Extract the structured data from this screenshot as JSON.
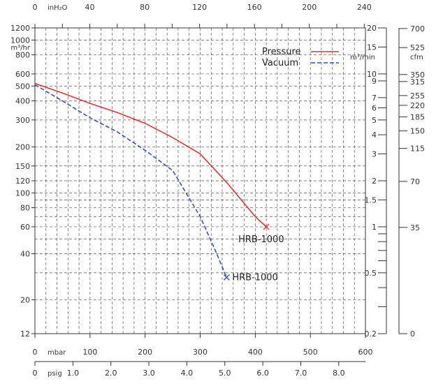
{
  "chart_data": {
    "type": "line",
    "series": [
      {
        "name": "Pressure",
        "color": "#d9343b",
        "dash": "solid",
        "label": "HRB-1000",
        "points": [
          [
            0,
            520
          ],
          [
            50,
            450
          ],
          [
            100,
            385
          ],
          [
            150,
            335
          ],
          [
            200,
            285
          ],
          [
            250,
            230
          ],
          [
            300,
            180
          ],
          [
            350,
            115
          ],
          [
            400,
            70
          ],
          [
            420,
            60
          ]
        ]
      },
      {
        "name": "Vacuum",
        "color": "#3a4fa8",
        "dash": "dashed",
        "label": "HRB-1000",
        "points": [
          [
            0,
            510
          ],
          [
            50,
            400
          ],
          [
            100,
            310
          ],
          [
            150,
            250
          ],
          [
            200,
            190
          ],
          [
            250,
            140
          ],
          [
            300,
            70
          ],
          [
            330,
            40
          ],
          [
            348,
            28
          ]
        ]
      }
    ],
    "left_axis": {
      "label": "m³/hr",
      "scale": "log",
      "range": [
        12,
        1200
      ],
      "ticks": [
        "1200",
        "1000",
        "800",
        "600",
        "500",
        "400",
        "300",
        "200",
        "150",
        "120",
        "100",
        "80",
        "60",
        "40",
        "20",
        "12"
      ]
    },
    "right_axis_1": {
      "label": "m³/min",
      "scale": "log",
      "range": [
        0.2,
        20
      ],
      "ticks": [
        "20",
        "15",
        "10",
        "9",
        "7",
        "6",
        "5",
        "4",
        "3",
        "2",
        "1.5",
        "1",
        "0.5",
        "0.2"
      ]
    },
    "right_axis_2": {
      "label": "cfm",
      "ticks": [
        "700",
        "525",
        "350",
        "315",
        "255",
        "220",
        "185",
        "150",
        "115",
        "70",
        "35",
        "0"
      ]
    },
    "top_axis": {
      "label": "inH₂O",
      "ticks": [
        "0",
        "40",
        "80",
        "120",
        "160",
        "200",
        "240"
      ]
    },
    "bottom_axis_1": {
      "label": "mbar",
      "range": [
        0,
        600
      ],
      "ticks": [
        "0",
        "100",
        "200",
        "300",
        "400",
        "500",
        "600"
      ]
    },
    "bottom_axis_2": {
      "label": "psig",
      "ticks": [
        "0",
        "1.0",
        "2.0",
        "3.0",
        "4.0",
        "5.0",
        "6.0",
        "7.0",
        "8.0"
      ]
    },
    "legend": {
      "placement": "top-right",
      "items": [
        {
          "name": "Pressure",
          "color": "#d9343b",
          "dash": "solid"
        },
        {
          "name": "Vacuum",
          "color": "#3a4fa8",
          "dash": "dashed"
        }
      ]
    },
    "grid": true
  }
}
